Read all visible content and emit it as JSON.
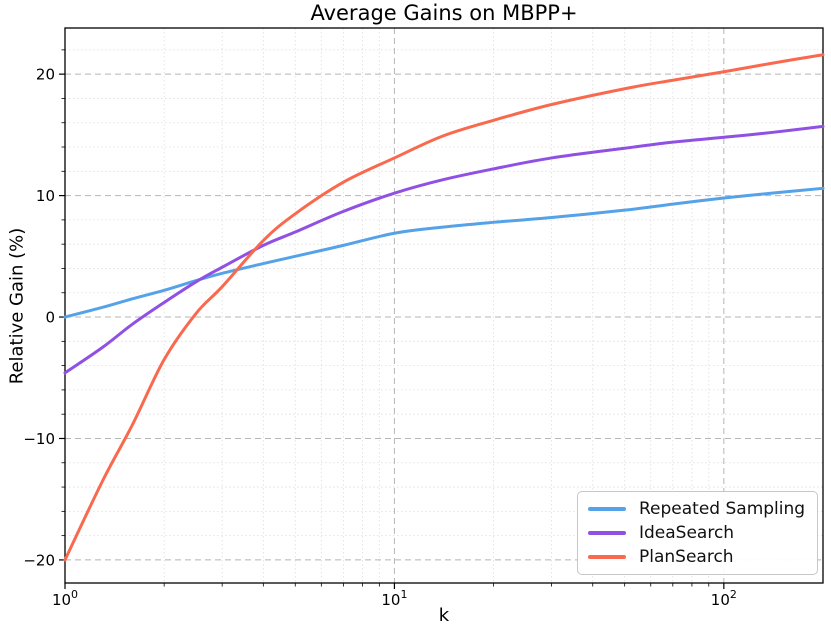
{
  "chart_data": {
    "type": "line",
    "title": "Average Gains on MBPP+",
    "xlabel": "k",
    "ylabel": "Relative Gain (%)",
    "x_scale": "log",
    "xlim": [
      1,
      200
    ],
    "ylim": [
      -21.9,
      23.8
    ],
    "grid": {
      "which": "both",
      "major_style": "dashed",
      "minor_style": "dotted",
      "major_color": "#b5b5b5",
      "minor_color": "#dddddd"
    },
    "legend_position": "lower right",
    "x_ticks": [
      {
        "value": 1,
        "base": "10",
        "exp": "0"
      },
      {
        "value": 10,
        "base": "10",
        "exp": "1"
      },
      {
        "value": 100,
        "base": "10",
        "exp": "2"
      }
    ],
    "y_ticks": [
      {
        "value": -20,
        "label": "−20"
      },
      {
        "value": -10,
        "label": "−10"
      },
      {
        "value": 0,
        "label": "0"
      },
      {
        "value": 10,
        "label": "10"
      },
      {
        "value": 20,
        "label": "20"
      }
    ],
    "y_minor_step": 2,
    "k": [
      1,
      1.3,
      1.6,
      2,
      2.5,
      3,
      4,
      5,
      7,
      10,
      14,
      20,
      30,
      50,
      70,
      100,
      140,
      200
    ],
    "series": [
      {
        "name": "Repeated Sampling",
        "color": "#55A2E8",
        "values": [
          0.0,
          0.8,
          1.5,
          2.2,
          3.0,
          3.6,
          4.4,
          5.0,
          5.9,
          6.9,
          7.4,
          7.8,
          8.2,
          8.8,
          9.3,
          9.8,
          10.2,
          10.6
        ]
      },
      {
        "name": "IdeaSearch",
        "color": "#9050E4",
        "values": [
          -4.6,
          -2.5,
          -0.6,
          1.2,
          2.9,
          4.1,
          5.9,
          7.0,
          8.7,
          10.2,
          11.3,
          12.2,
          13.1,
          13.9,
          14.4,
          14.8,
          15.2,
          15.7
        ]
      },
      {
        "name": "PlanSearch",
        "color": "#F9694E",
        "values": [
          -20.0,
          -13.5,
          -8.9,
          -3.5,
          0.3,
          2.5,
          6.3,
          8.5,
          11.1,
          13.1,
          14.9,
          16.2,
          17.5,
          18.8,
          19.5,
          20.2,
          20.9,
          21.6
        ]
      }
    ]
  }
}
